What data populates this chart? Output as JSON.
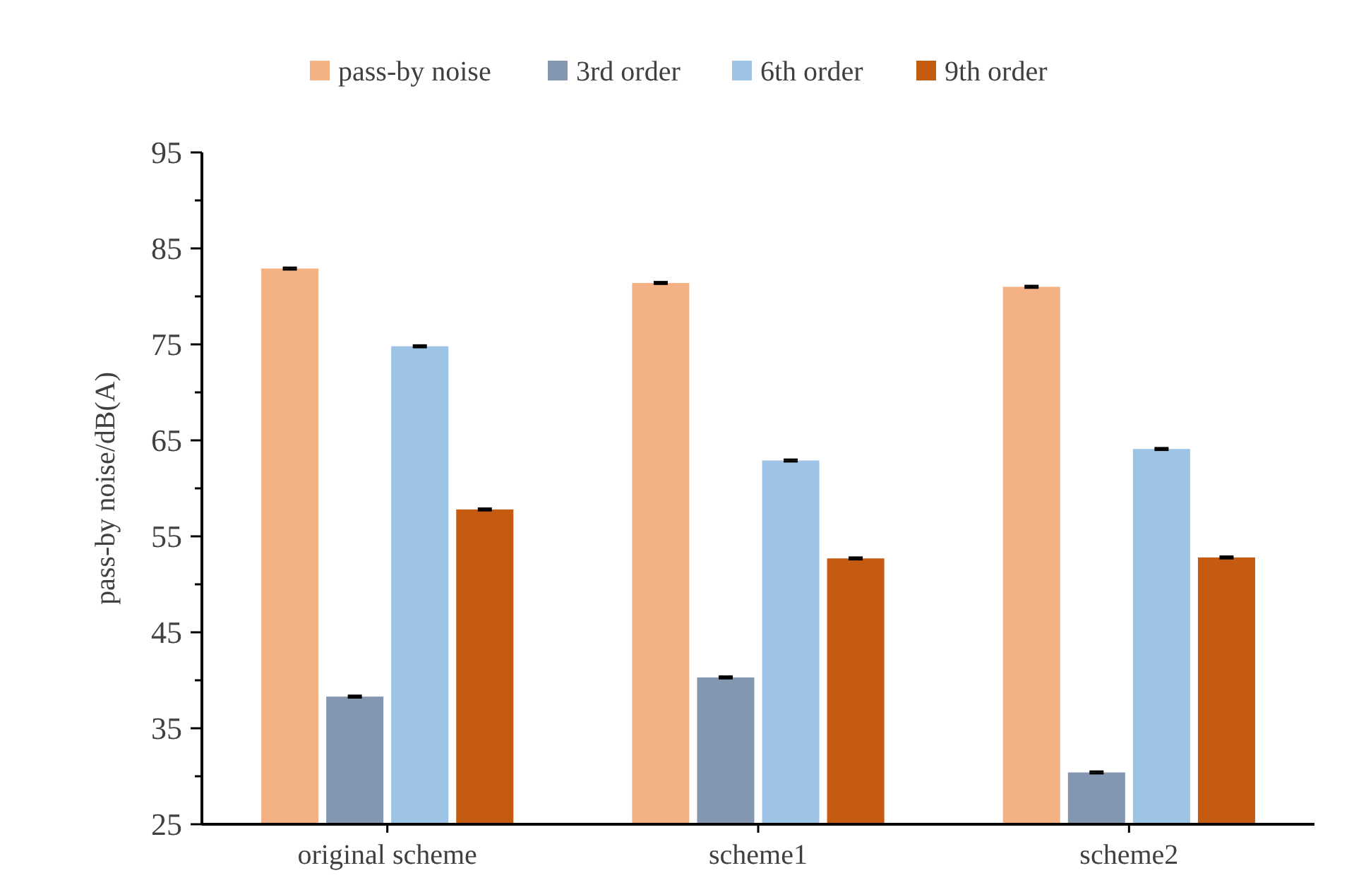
{
  "chart_data": {
    "type": "bar",
    "ylabel": "pass-by noise/dB(A)",
    "categories": [
      "original scheme",
      "scheme1",
      "scheme2"
    ],
    "series": [
      {
        "name": "pass-by noise",
        "color": "#f4b183",
        "values": [
          82.9,
          81.4,
          81.0
        ],
        "errors": [
          0.1,
          0.1,
          0.1
        ]
      },
      {
        "name": "3rd order",
        "color": "#8497b0",
        "values": [
          38.3,
          40.3,
          30.4
        ],
        "errors": [
          0.1,
          0.1,
          0.1
        ]
      },
      {
        "name": "6th order",
        "color": "#9dc3e6",
        "values": [
          74.8,
          62.9,
          64.1
        ],
        "errors": [
          0.1,
          0.1,
          0.1
        ]
      },
      {
        "name": "9th order",
        "color": "#c55a11",
        "values": [
          57.8,
          52.7,
          52.8
        ],
        "errors": [
          0.1,
          0.1,
          0.1
        ]
      }
    ],
    "ylim": [
      25,
      95
    ],
    "yticks": [
      25,
      {
        "value": 30,
        "label": null
      },
      35,
      {
        "value": 40,
        "label": null
      },
      45,
      {
        "value": 50,
        "label": null
      },
      55,
      {
        "value": 60,
        "label": null
      },
      65,
      {
        "value": 70,
        "label": null
      },
      75,
      {
        "value": 80,
        "label": null
      },
      85,
      {
        "value": 90,
        "label": null
      },
      95
    ],
    "grid": false,
    "legend": "top"
  }
}
